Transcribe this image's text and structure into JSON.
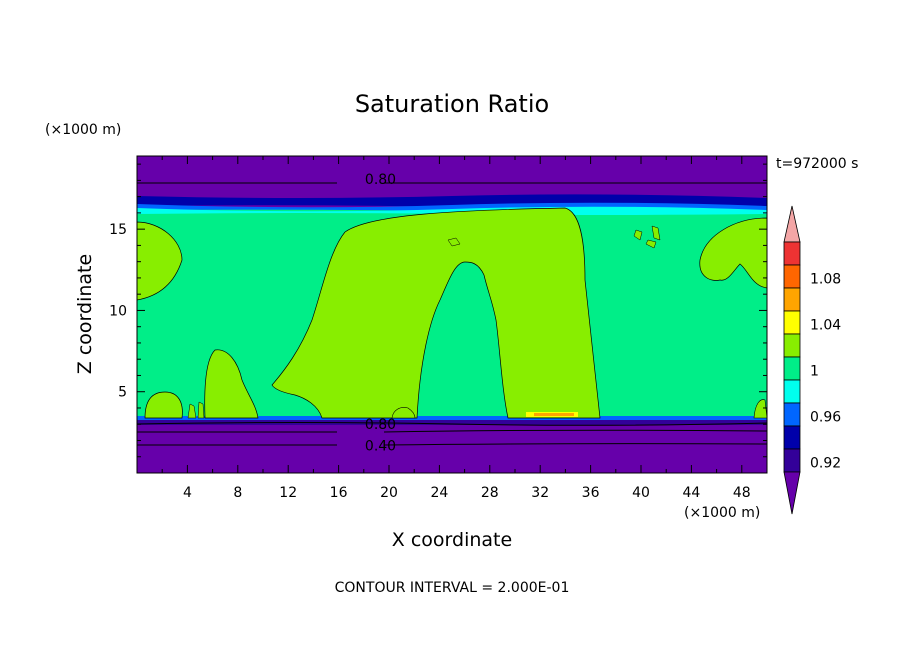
{
  "chart_data": {
    "type": "contour",
    "title": "Saturation Ratio",
    "xlabel": "X coordinate",
    "ylabel": "Z coordinate",
    "x_unit": "(×1000 m)",
    "y_unit": "(×1000 m)",
    "time_label": "t=972000 s",
    "footer": "CONTOUR INTERVAL = 2.000E-01",
    "xlim": [
      0,
      50
    ],
    "ylim": [
      0,
      19.5
    ],
    "x_ticks": [
      4,
      8,
      12,
      16,
      20,
      24,
      28,
      32,
      36,
      40,
      44,
      48
    ],
    "y_ticks": [
      5,
      10,
      15
    ],
    "contour_line_labels": [
      {
        "text": "0.80",
        "x": 17.5,
        "y": 18.1
      },
      {
        "text": "0.80",
        "x": 17.5,
        "y": 3.0
      },
      {
        "text": "0.40",
        "x": 17.5,
        "y": 1.7
      }
    ],
    "colorbar": {
      "tick_labels": [
        "1.08",
        "1.04",
        "1",
        "0.96",
        "0.92"
      ],
      "bands": [
        {
          "color": "#f4a6a6",
          "range": ">1.10"
        },
        {
          "color": "#ee3333",
          "range": "1.08-1.10"
        },
        {
          "color": "#ff6600",
          "range": "1.06-1.08"
        },
        {
          "color": "#ffa500",
          "range": "1.04-1.06"
        },
        {
          "color": "#ffff00",
          "range": "1.02-1.04"
        },
        {
          "color": "#88ee00",
          "range": "1.00-1.02"
        },
        {
          "color": "#00ee88",
          "range": "0.98-1.00"
        },
        {
          "color": "#00ffee",
          "range": "0.96-0.98"
        },
        {
          "color": "#0066ff",
          "range": "0.94-0.96"
        },
        {
          "color": "#0000aa",
          "range": "0.92-0.94"
        },
        {
          "color": "#330099",
          "range": "0.90-0.92"
        },
        {
          "color": "#6600aa",
          "range": "<0.90"
        }
      ]
    }
  }
}
